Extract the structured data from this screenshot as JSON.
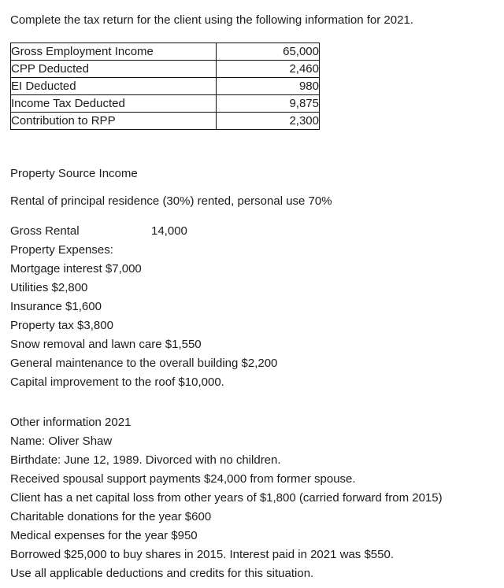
{
  "page": {
    "title": "Complete the tax return for the client using the following information for 2021."
  },
  "employment_table": {
    "rows": [
      {
        "label": "Gross Employment Income",
        "value": "65,000"
      },
      {
        "label": "CPP Deducted",
        "value": "2,460"
      },
      {
        "label": "EI Deducted",
        "value": "980"
      },
      {
        "label": "Income Tax Deducted",
        "value": "9,875"
      },
      {
        "label": "Contribution to RPP",
        "value": "2,300"
      }
    ]
  },
  "property_section": {
    "heading": "Property Source Income",
    "rental_line": "Rental of principal residence (30%) rented, personal use 70%",
    "gross_rental_label": "Gross Rental",
    "gross_rental_value": "14,000",
    "expenses_heading": "Property Expenses:",
    "expenses": [
      "Mortgage interest $7,000",
      "Utilities $2,800",
      "Insurance $1,600",
      "Property tax $3,800",
      "Snow removal and lawn care $1,550",
      "General maintenance to the overall building $2,200",
      "Capital improvement to the roof $10,000."
    ]
  },
  "other_section": {
    "heading": "Other information 2021",
    "lines": [
      "Name: Oliver Shaw",
      "Birthdate: June 12, 1989. Divorced with no children.",
      "Received spousal support payments $24,000 from former spouse.",
      "Client has a net capital loss from other years of $1,800 (carried forward from 2015)",
      "Charitable donations for the year $600",
      "Medical expenses for the year $950",
      "Borrowed $25,000 to buy shares in 2015. Interest paid in 2021 was $550.",
      "Use all applicable deductions and credits for this situation."
    ]
  },
  "colors": {
    "text": "#1c1c1c",
    "table_border": "#111111",
    "background": "#ffffff"
  }
}
